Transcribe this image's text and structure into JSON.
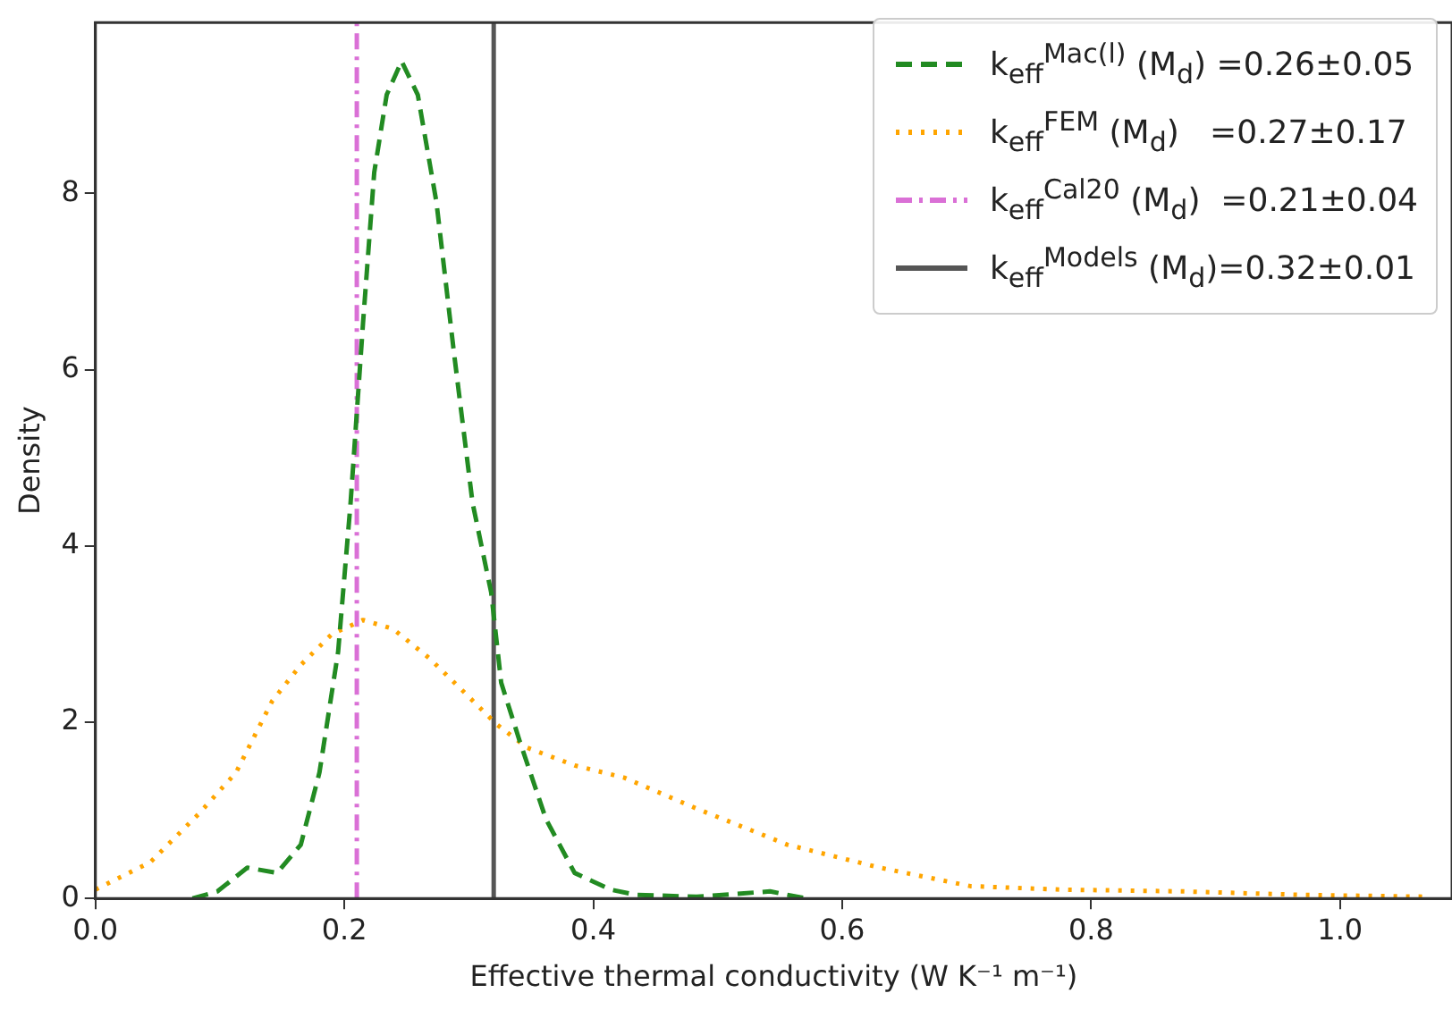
{
  "chart_data": {
    "type": "line",
    "xlabel": "Effective thermal conductivity (W K⁻¹ m⁻¹)",
    "ylabel": "Density",
    "xlim": [
      0,
      1.09
    ],
    "xticks": [
      {
        "value": 0,
        "label": "0.0"
      },
      {
        "value": 0.2,
        "label": "0.2"
      },
      {
        "value": 0.4,
        "label": "0.4"
      },
      {
        "value": 0.6,
        "label": "0.6"
      },
      {
        "value": 0.8,
        "label": "0.8"
      },
      {
        "value": 1,
        "label": "1.0"
      }
    ],
    "ylim": [
      0,
      9.94
    ],
    "yticks": [
      0,
      2,
      4,
      6,
      8
    ],
    "grid": false,
    "legend": "top right",
    "marker": "none",
    "series": [
      {
        "name": "k$_{eff}$$^{Mac(l)}$ (M$_{d}$) =0.26±0.05",
        "color": "#228b22",
        "line_style": "dashed",
        "x": [
          0.078,
          0.098,
          0.122,
          0.146,
          0.165,
          0.18,
          0.195,
          0.205,
          0.215,
          0.224,
          0.234,
          0.246,
          0.259,
          0.274,
          0.288,
          0.303,
          0.318,
          0.326,
          0.341,
          0.362,
          0.385,
          0.414,
          0.435,
          0.483,
          0.542,
          0.571
        ],
        "values": [
          0,
          0.08,
          0.35,
          0.29,
          0.61,
          1.43,
          2.8,
          4.49,
          6.53,
          8.24,
          9.12,
          9.5,
          9.12,
          7.9,
          6.2,
          4.49,
          3.47,
          2.45,
          1.78,
          0.9,
          0.29,
          0.1,
          0.04,
          0.02,
          0.08,
          0
        ]
      },
      {
        "name": "k$_{eff}$$^{FEM}$ (M$_{d}$)   =0.27±0.17",
        "color": "#ffa500",
        "line_style": "dotted",
        "x": [
          0,
          0.044,
          0.083,
          0.113,
          0.142,
          0.165,
          0.19,
          0.215,
          0.239,
          0.268,
          0.297,
          0.322,
          0.347,
          0.385,
          0.425,
          0.483,
          0.556,
          0.63,
          0.703,
          0.776,
          0.874,
          0.971,
          1.069
        ],
        "values": [
          0.1,
          0.41,
          0.96,
          1.43,
          2.24,
          2.65,
          3,
          3.16,
          3.06,
          2.73,
          2.33,
          1.98,
          1.71,
          1.51,
          1.37,
          1.02,
          0.61,
          0.35,
          0.14,
          0.1,
          0.08,
          0.04,
          0.02
        ]
      },
      {
        "name": "k$_{eff}$$^{Cal20}$ (M$_{d}$)  =0.21±0.04",
        "type": "line",
        "color": "#da70d6",
        "line_style": "dashdot",
        "x": [
          0.21,
          0.21
        ],
        "values": [
          0,
          9.94
        ]
      },
      {
        "name": "k$_{eff}$$^{Models}$ (M$_{d}$)=0.32±0.01",
        "type": "line",
        "color": "#555555",
        "line_style": "solid",
        "x": [
          0.32,
          0.32
        ],
        "values": [
          0,
          9.94
        ]
      }
    ]
  }
}
